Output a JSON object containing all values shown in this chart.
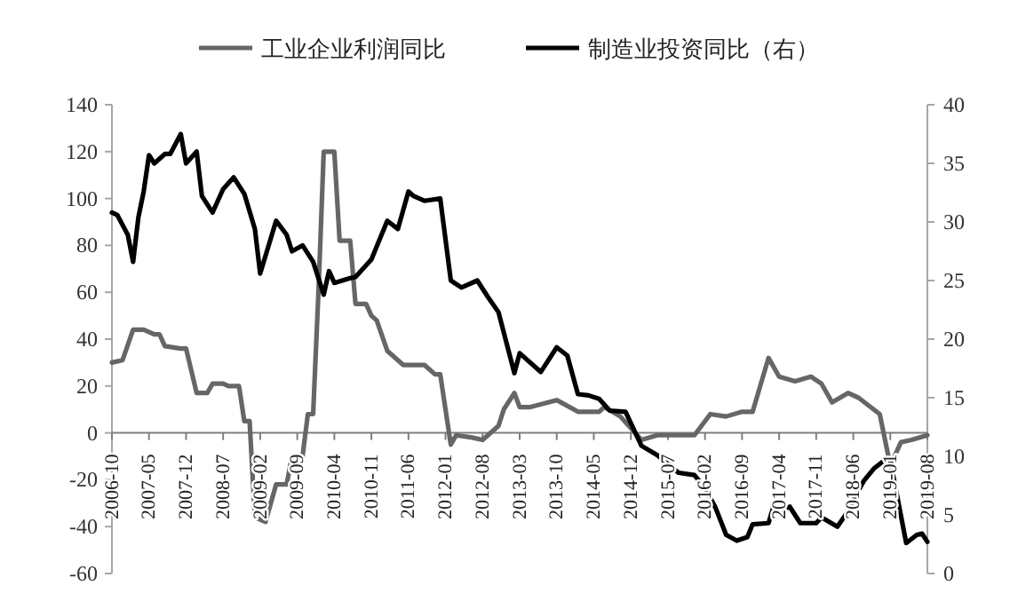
{
  "chart_data": {
    "type": "line",
    "xlim": [
      "2006-10",
      "2019-08"
    ],
    "xticks": [
      "2006-10",
      "2007-05",
      "2007-12",
      "2008-07",
      "2009-02",
      "2009-09",
      "2010-04",
      "2010-11",
      "2011-06",
      "2012-01",
      "2012-08",
      "2013-03",
      "2013-10",
      "2014-05",
      "2014-12",
      "2015-07",
      "2016-02",
      "2016-09",
      "2017-04",
      "2017-11",
      "2018-06",
      "2019-01",
      "2019-08"
    ],
    "ylim": [
      -60,
      140
    ],
    "yticks": [
      -60,
      -40,
      -20,
      0,
      20,
      40,
      60,
      80,
      100,
      120,
      140
    ],
    "y2lim": [
      0,
      40
    ],
    "y2ticks": [
      0,
      5,
      10,
      15,
      20,
      25,
      30,
      35,
      40
    ],
    "legend": "top",
    "grid": false,
    "series": [
      {
        "name": "工业企业利润同比",
        "color": "#666666",
        "axis": "y",
        "x": [
          "2006-10",
          "2006-12",
          "2007-02",
          "2007-04",
          "2007-06",
          "2007-07",
          "2007-08",
          "2007-11",
          "2007-12",
          "2008-02",
          "2008-04",
          "2008-05",
          "2008-07",
          "2008-08",
          "2008-10",
          "2008-11",
          "2008-12",
          "2009-01",
          "2009-03",
          "2009-05",
          "2009-07",
          "2009-08",
          "2009-10",
          "2009-11",
          "2009-12",
          "2010-01",
          "2010-02",
          "2010-04",
          "2010-05",
          "2010-07",
          "2010-08",
          "2010-10",
          "2010-11",
          "2010-12",
          "2011-02",
          "2011-05",
          "2011-09",
          "2011-11",
          "2011-12",
          "2012-02",
          "2012-03",
          "2012-06",
          "2012-08",
          "2012-11",
          "2012-12",
          "2013-02",
          "2013-03",
          "2013-05",
          "2013-10",
          "2014-02",
          "2014-06",
          "2014-07",
          "2014-10",
          "2014-12",
          "2015-02",
          "2015-05",
          "2015-12",
          "2016-03",
          "2016-06",
          "2016-09",
          "2016-11",
          "2017-02",
          "2017-04",
          "2017-07",
          "2017-10",
          "2017-12",
          "2018-02",
          "2018-05",
          "2018-07",
          "2018-11",
          "2019-01",
          "2019-03",
          "2019-05",
          "2019-08"
        ],
        "values": [
          30,
          31,
          44,
          44,
          42,
          42,
          37,
          36,
          36,
          17,
          17,
          21,
          21,
          20,
          20,
          5,
          5,
          -36,
          -38,
          -22,
          -22,
          -10,
          -10,
          8,
          8,
          60,
          120,
          120,
          82,
          82,
          55,
          55,
          50,
          48,
          35,
          29,
          29,
          25,
          25,
          -5,
          -1,
          -2,
          -3,
          3,
          10,
          17,
          11,
          11,
          14,
          9,
          9,
          11,
          7,
          2,
          -3,
          -1,
          -1,
          8,
          7,
          9,
          9,
          32,
          24,
          22,
          24,
          21,
          13,
          17,
          15,
          8,
          -14,
          -4,
          -3,
          -1
        ]
      },
      {
        "name": "制造业投资同比（右）",
        "color": "#000000",
        "axis": "y2",
        "x": [
          "2006-10",
          "2006-11",
          "2007-01",
          "2007-02",
          "2007-03",
          "2007-04",
          "2007-05",
          "2007-06",
          "2007-08",
          "2007-09",
          "2007-11",
          "2007-12",
          "2008-02",
          "2008-03",
          "2008-05",
          "2008-07",
          "2008-09",
          "2008-11",
          "2009-01",
          "2009-02",
          "2009-04",
          "2009-05",
          "2009-07",
          "2009-08",
          "2009-10",
          "2009-12",
          "2010-02",
          "2010-03",
          "2010-04",
          "2010-07",
          "2010-08",
          "2010-11",
          "2011-02",
          "2011-04",
          "2011-06",
          "2011-07",
          "2011-09",
          "2011-12",
          "2012-02",
          "2012-04",
          "2012-07",
          "2012-09",
          "2012-11",
          "2013-02",
          "2013-03",
          "2013-07",
          "2013-10",
          "2013-12",
          "2014-02",
          "2014-04",
          "2014-06",
          "2014-08",
          "2014-11",
          "2015-02",
          "2015-05",
          "2015-09",
          "2015-12",
          "2016-02",
          "2016-04",
          "2016-06",
          "2016-08",
          "2016-10",
          "2016-11",
          "2017-02",
          "2017-03",
          "2017-04",
          "2017-06",
          "2017-08",
          "2017-11",
          "2017-12",
          "2018-03",
          "2018-05",
          "2018-07",
          "2018-08",
          "2018-10",
          "2018-12",
          "2019-01",
          "2019-02",
          "2019-04",
          "2019-06",
          "2019-07",
          "2019-08"
        ],
        "values": [
          30.8,
          30.6,
          28.9,
          26.6,
          30.4,
          32.6,
          35.7,
          35,
          35.8,
          35.8,
          37.5,
          35,
          36,
          32.2,
          30.8,
          32.8,
          33.8,
          32.4,
          29.4,
          25.6,
          28.6,
          30.1,
          28.9,
          27.5,
          28,
          26.6,
          23.8,
          25.8,
          24.8,
          25.2,
          25.3,
          26.8,
          30.1,
          29.4,
          32.6,
          32.2,
          31.8,
          32,
          25,
          24.4,
          25,
          23.6,
          22.3,
          17.1,
          18.8,
          17.2,
          19.3,
          18.6,
          15.3,
          15.2,
          14.9,
          13.9,
          13.8,
          10.9,
          10.1,
          8.6,
          8.4,
          7.3,
          5.6,
          3.3,
          2.8,
          3.1,
          4.2,
          4.3,
          5.8,
          5.3,
          5.7,
          4.3,
          4.3,
          4.8,
          4,
          5.3,
          7.1,
          7.9,
          9,
          9.7,
          9.6,
          7.3,
          2.6,
          3.3,
          3.4,
          2.7
        ]
      }
    ]
  }
}
